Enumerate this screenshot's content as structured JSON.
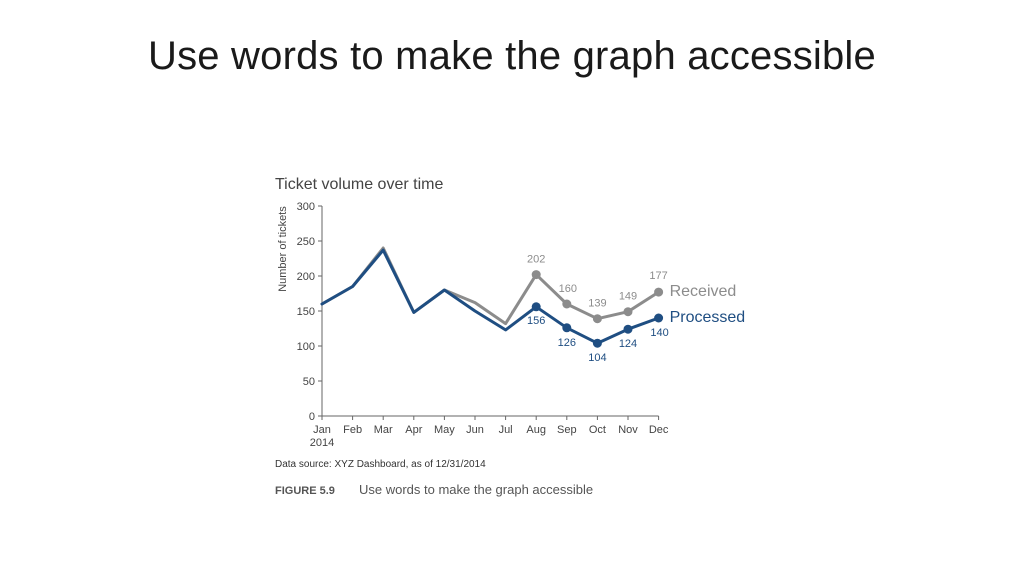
{
  "slide": {
    "title": "Use words to make the graph accessible"
  },
  "colors": {
    "received": "#8c8c8c",
    "processed": "#1f4e82",
    "axis": "#666666",
    "text": "#444444"
  },
  "chart_data": {
    "type": "line",
    "title": "Ticket volume over time",
    "ylabel": "Number of tickets",
    "xlabel": "",
    "categories": [
      "Jan",
      "Feb",
      "Mar",
      "Apr",
      "May",
      "Jun",
      "Jul",
      "Aug",
      "Sep",
      "Oct",
      "Nov",
      "Dec"
    ],
    "year_label": "2014",
    "yticks": [
      0,
      50,
      100,
      150,
      200,
      250,
      300
    ],
    "ylim": [
      0,
      300
    ],
    "grid": false,
    "series": [
      {
        "name": "Received",
        "values": [
          160,
          185,
          240,
          148,
          180,
          162,
          132,
          202,
          160,
          139,
          149,
          177
        ],
        "labeled_from_index": 7,
        "color": "#8c8c8c"
      },
      {
        "name": "Processed",
        "values": [
          160,
          185,
          237,
          148,
          180,
          150,
          123,
          156,
          126,
          104,
          124,
          140
        ],
        "labeled_from_index": 7,
        "color": "#1f4e82"
      }
    ],
    "source": "Data source: XYZ Dashboard, as of 12/31/2014"
  },
  "figure": {
    "number": "FIGURE 5.9",
    "caption": "Use words to make the graph accessible"
  }
}
